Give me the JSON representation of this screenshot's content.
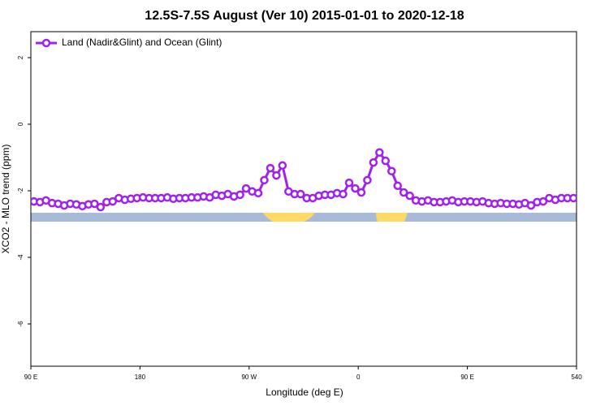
{
  "chart_data": {
    "type": "line",
    "title": "12.5S-7.5S August (Ver 10)   2015-01-01 to 2020-12-18",
    "xlabel": "Longitude (deg E)",
    "ylabel": "XCO2 - MLO trend (ppm)",
    "xlim": [
      90,
      540
    ],
    "xticks": [
      {
        "value": 90,
        "label": "90 E"
      },
      180,
      {
        "value": 270,
        "label": "90 W"
      },
      {
        "value": 360,
        "label": "0"
      },
      {
        "value": 450,
        "label": "90 E"
      },
      540
    ],
    "ylim": [
      -7.27,
      2.78
    ],
    "yticks": [
      2,
      0,
      -2,
      -4,
      -6
    ],
    "legend": "top-left",
    "x": [
      92.5,
      97.5,
      102.5,
      107.5,
      112.5,
      117.5,
      122.5,
      127.5,
      132.5,
      137.5,
      142.5,
      147.5,
      152.5,
      157.5,
      162.5,
      167.5,
      172.5,
      177.5,
      182.5,
      187.5,
      192.5,
      197.5,
      202.5,
      207.5,
      212.5,
      217.5,
      222.5,
      227.5,
      232.5,
      237.5,
      242.5,
      247.5,
      252.5,
      257.5,
      262.5,
      267.5,
      272.5,
      277.5,
      282.5,
      287.5,
      292.5,
      297.5,
      302.5,
      307.5,
      312.5,
      317.5,
      322.5,
      327.5,
      332.5,
      337.5,
      342.5,
      347.5,
      352.5,
      357.5,
      362.5,
      367.5,
      372.5,
      377.5,
      382.5,
      387.5,
      392.5,
      397.5,
      402.5,
      407.5,
      412.5,
      417.5,
      422.5,
      427.5,
      432.5,
      437.5,
      442.5,
      447.5,
      452.5,
      457.5,
      462.5,
      467.5,
      472.5,
      477.5,
      482.5,
      487.5,
      492.5,
      497.5,
      502.5,
      507.5,
      512.5,
      517.5,
      522.5,
      527.5,
      532.5,
      537.5
    ],
    "series": [
      {
        "name": "Land (Nadir&Glint) and Ocean (Glint)",
        "color": "#a020f0",
        "values": [
          -2.32,
          -2.34,
          -2.29,
          -2.37,
          -2.39,
          -2.44,
          -2.39,
          -2.41,
          -2.46,
          -2.41,
          -2.39,
          -2.49,
          -2.34,
          -2.32,
          -2.22,
          -2.27,
          -2.24,
          -2.22,
          -2.2,
          -2.22,
          -2.22,
          -2.22,
          -2.2,
          -2.24,
          -2.22,
          -2.22,
          -2.2,
          -2.2,
          -2.17,
          -2.2,
          -2.12,
          -2.15,
          -2.1,
          -2.17,
          -2.12,
          -1.93,
          -2.02,
          -2.07,
          -1.68,
          -1.32,
          -1.54,
          -1.24,
          -2.02,
          -2.1,
          -2.1,
          -2.22,
          -2.22,
          -2.15,
          -2.12,
          -2.12,
          -2.07,
          -2.1,
          -1.76,
          -1.93,
          -2.05,
          -1.68,
          -1.15,
          -0.85,
          -1.1,
          -1.41,
          -1.85,
          -2.05,
          -2.15,
          -2.29,
          -2.32,
          -2.29,
          -2.34,
          -2.34,
          -2.32,
          -2.29,
          -2.34,
          -2.32,
          -2.32,
          -2.34,
          -2.32,
          -2.37,
          -2.39,
          -2.37,
          -2.39,
          -2.39,
          -2.41,
          -2.37,
          -2.44,
          -2.34,
          -2.32,
          -2.22,
          -2.27,
          -2.22,
          -2.22,
          -2.22
        ]
      }
    ]
  }
}
